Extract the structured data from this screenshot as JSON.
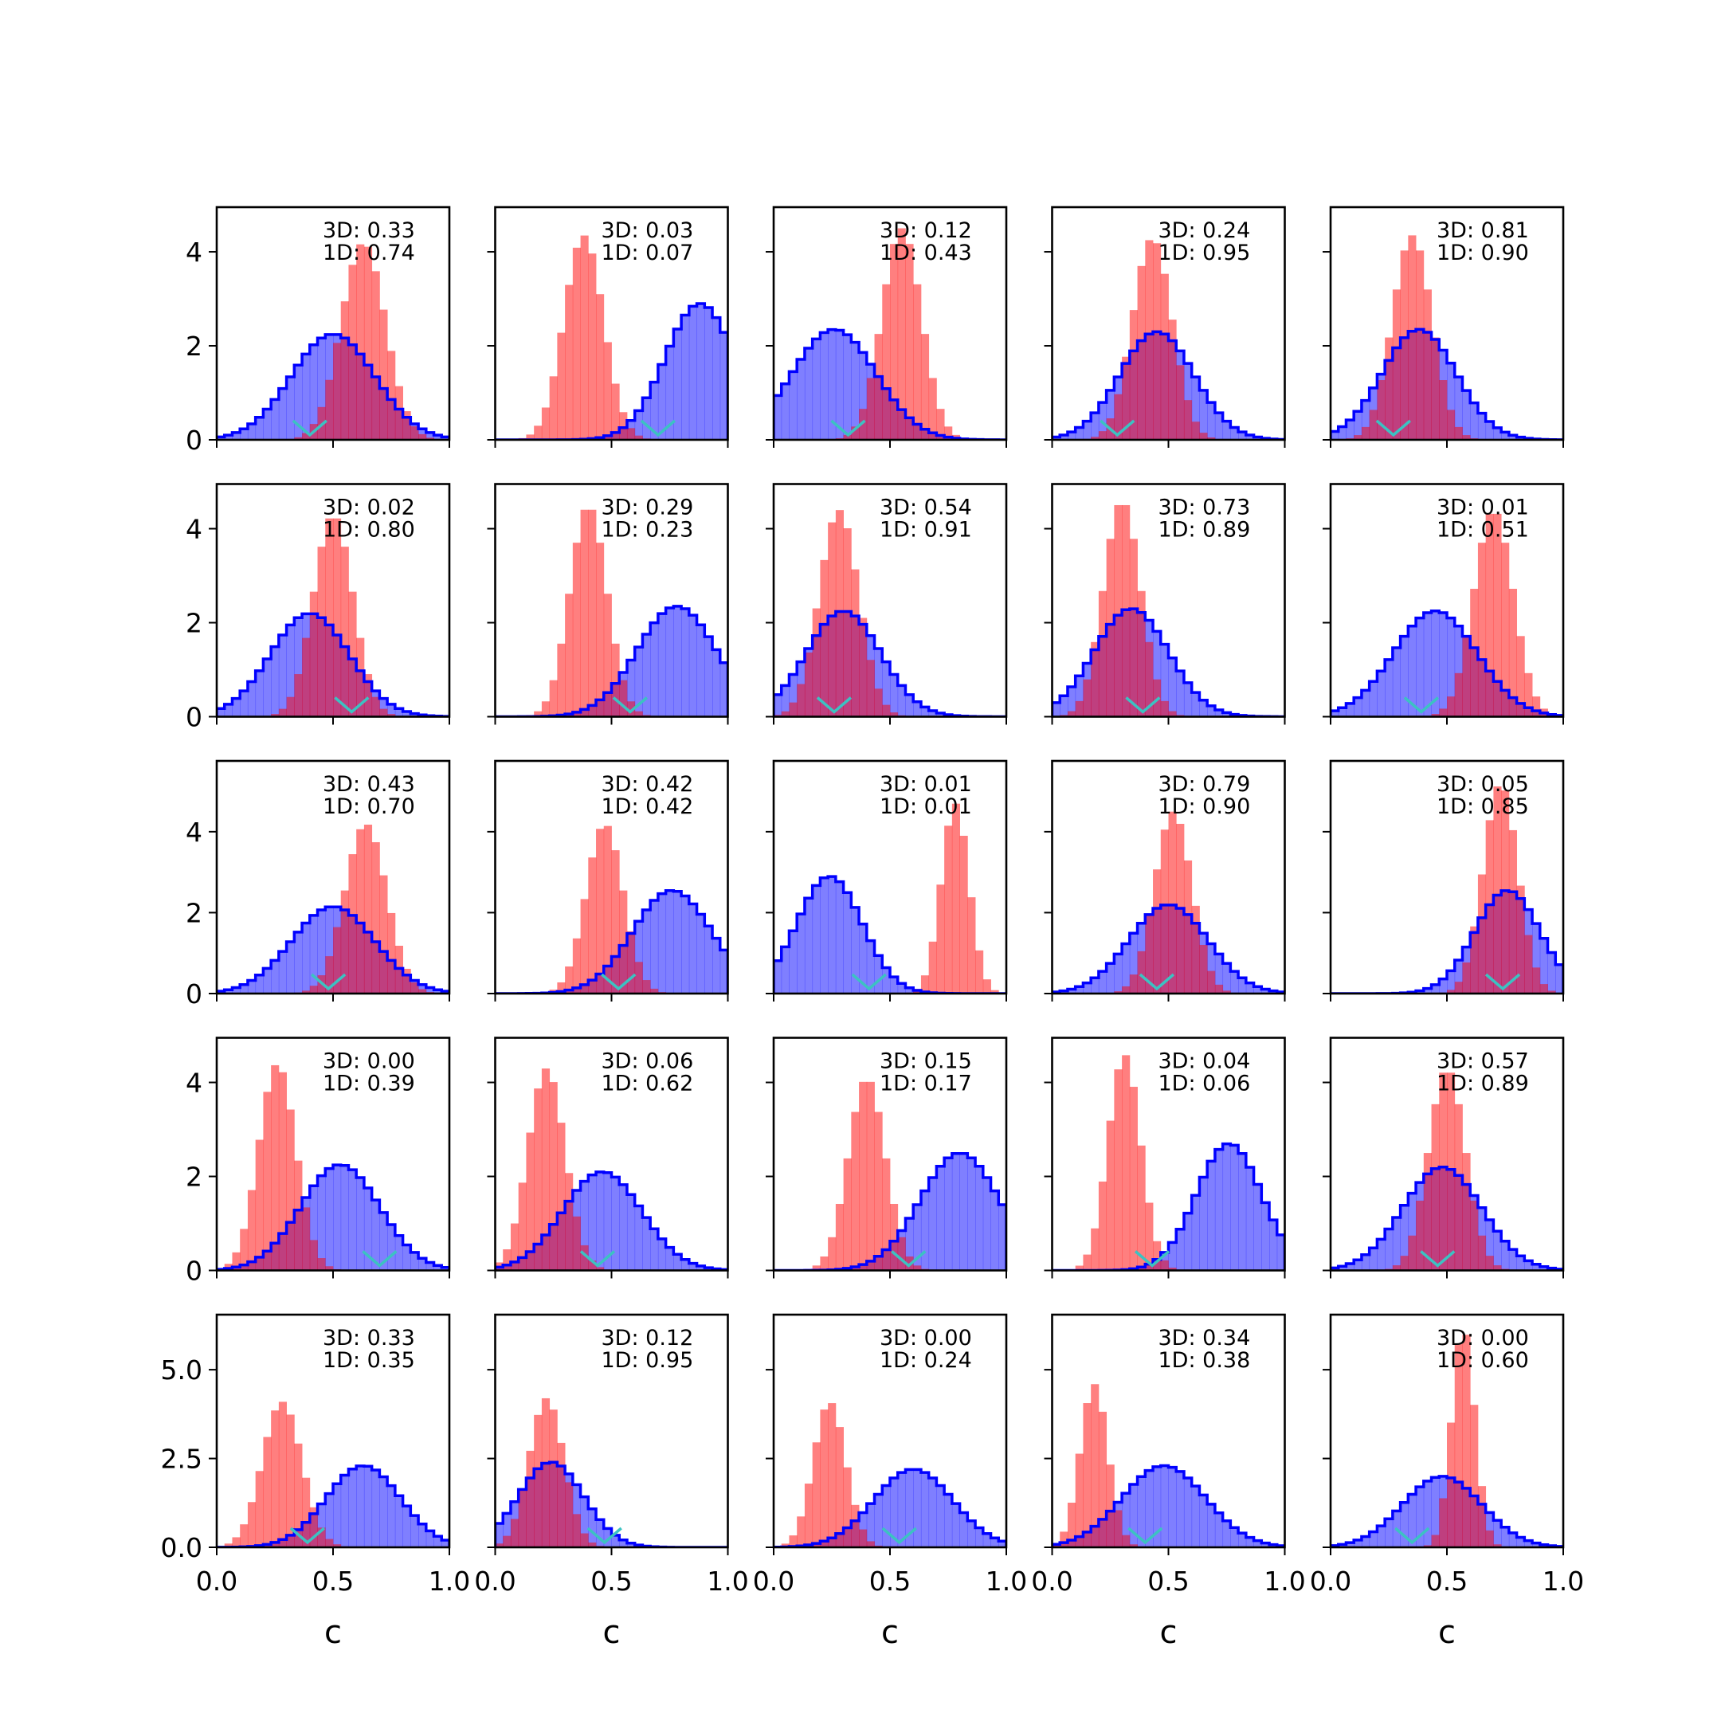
{
  "figure": {
    "rows": 5,
    "cols": 5,
    "colors": {
      "red_hist": "#ff0000",
      "blue_hist": "#0000ff",
      "marker": "#3cc2c2",
      "frame": "#000000"
    }
  },
  "axes": {
    "xlabel": "c",
    "x_range": [
      0,
      1
    ],
    "x_ticks": [
      0.0,
      0.5,
      1.0
    ],
    "x_tick_labels": [
      "0.0",
      "0.5",
      "1.0"
    ],
    "y_rows": [
      {
        "ylim": [
          0,
          4.95
        ],
        "ticks": [
          0,
          2,
          4
        ],
        "labels": [
          "0",
          "2",
          "4"
        ]
      },
      {
        "ylim": [
          0,
          4.95
        ],
        "ticks": [
          0,
          2,
          4
        ],
        "labels": [
          "0",
          "2",
          "4"
        ]
      },
      {
        "ylim": [
          0,
          5.75
        ],
        "ticks": [
          0,
          2,
          4
        ],
        "labels": [
          "0",
          "2",
          "4"
        ]
      },
      {
        "ylim": [
          0,
          4.95
        ],
        "ticks": [
          0,
          2,
          4
        ],
        "labels": [
          "0",
          "2",
          "4"
        ]
      },
      {
        "ylim": [
          0,
          6.55
        ],
        "ticks": [
          0,
          2.5,
          5.0
        ],
        "labels": [
          "0.0",
          "2.5",
          "5.0"
        ]
      }
    ]
  },
  "chart_data": {
    "type": "histogram-grid",
    "bins": 30,
    "bin_range": [
      0,
      1
    ],
    "panels": [
      {
        "id": "r1c1",
        "row": 0,
        "col": 0,
        "ann_3d": "3D: 0.33",
        "ann_1d": "1D: 0.74",
        "red": {
          "mu": 0.63,
          "sd": 0.095,
          "peak": 4.2
        },
        "blue": {
          "mu": 0.5,
          "sd": 0.18,
          "peak": 2.25
        },
        "marker_x": 0.4
      },
      {
        "id": "r1c2",
        "row": 0,
        "col": 1,
        "ann_3d": "3D: 0.03",
        "ann_1d": "1D: 0.07",
        "red": {
          "mu": 0.38,
          "sd": 0.085,
          "peak": 4.35
        },
        "blue": {
          "mu": 0.88,
          "sd": 0.15,
          "peak": 2.9
        },
        "marker_x": 0.7
      },
      {
        "id": "r1c3",
        "row": 0,
        "col": 2,
        "ann_3d": "3D: 0.12",
        "ann_1d": "1D: 0.43",
        "red": {
          "mu": 0.55,
          "sd": 0.085,
          "peak": 4.5
        },
        "blue": {
          "mu": 0.26,
          "sd": 0.18,
          "peak": 2.35
        },
        "marker_x": 0.32
      },
      {
        "id": "r1c4",
        "row": 0,
        "col": 3,
        "ann_3d": "3D: 0.24",
        "ann_1d": "1D: 0.95",
        "red": {
          "mu": 0.43,
          "sd": 0.085,
          "peak": 4.3
        },
        "blue": {
          "mu": 0.45,
          "sd": 0.16,
          "peak": 2.3
        },
        "marker_x": 0.28
      },
      {
        "id": "r1c5",
        "row": 0,
        "col": 4,
        "ann_3d": "3D: 0.81",
        "ann_1d": "1D: 0.90",
        "red": {
          "mu": 0.35,
          "sd": 0.085,
          "peak": 4.35
        },
        "blue": {
          "mu": 0.38,
          "sd": 0.16,
          "peak": 2.35
        },
        "marker_x": 0.27
      },
      {
        "id": "r2c1",
        "row": 1,
        "col": 0,
        "ann_3d": "3D: 0.02",
        "ann_1d": "1D: 0.80",
        "red": {
          "mu": 0.5,
          "sd": 0.085,
          "peak": 4.3
        },
        "blue": {
          "mu": 0.4,
          "sd": 0.17,
          "peak": 2.2
        },
        "marker_x": 0.58
      },
      {
        "id": "r2c2",
        "row": 1,
        "col": 1,
        "ann_3d": "3D: 0.29",
        "ann_1d": "1D: 0.23",
        "red": {
          "mu": 0.4,
          "sd": 0.08,
          "peak": 4.5
        },
        "blue": {
          "mu": 0.78,
          "sd": 0.17,
          "peak": 2.35
        },
        "marker_x": 0.58
      },
      {
        "id": "r2c3",
        "row": 1,
        "col": 2,
        "ann_3d": "3D: 0.54",
        "ann_1d": "1D: 0.91",
        "red": {
          "mu": 0.28,
          "sd": 0.085,
          "peak": 4.4
        },
        "blue": {
          "mu": 0.3,
          "sd": 0.16,
          "peak": 2.25
        },
        "marker_x": 0.26
      },
      {
        "id": "r2c4",
        "row": 1,
        "col": 3,
        "ann_3d": "3D: 0.73",
        "ann_1d": "1D: 0.89",
        "red": {
          "mu": 0.3,
          "sd": 0.08,
          "peak": 4.6
        },
        "blue": {
          "mu": 0.34,
          "sd": 0.16,
          "peak": 2.3
        },
        "marker_x": 0.39
      },
      {
        "id": "r2c5",
        "row": 1,
        "col": 4,
        "ann_3d": "3D: 0.01",
        "ann_1d": "1D: 0.51",
        "red": {
          "mu": 0.7,
          "sd": 0.085,
          "peak": 4.4
        },
        "blue": {
          "mu": 0.45,
          "sd": 0.18,
          "peak": 2.25
        },
        "marker_x": 0.39
      },
      {
        "id": "r3c1",
        "row": 2,
        "col": 0,
        "ann_3d": "3D: 0.43",
        "ann_1d": "1D: 0.70",
        "red": {
          "mu": 0.64,
          "sd": 0.09,
          "peak": 4.2
        },
        "blue": {
          "mu": 0.5,
          "sd": 0.18,
          "peak": 2.15
        },
        "marker_x": 0.48
      },
      {
        "id": "r3c2",
        "row": 2,
        "col": 1,
        "ann_3d": "3D: 0.42",
        "ann_1d": "1D: 0.42",
        "red": {
          "mu": 0.47,
          "sd": 0.08,
          "peak": 4.2
        },
        "blue": {
          "mu": 0.76,
          "sd": 0.17,
          "peak": 2.55
        },
        "marker_x": 0.53
      },
      {
        "id": "r3c3",
        "row": 2,
        "col": 2,
        "ann_3d": "3D: 0.01",
        "ann_1d": "1D: 0.01",
        "red": {
          "mu": 0.78,
          "sd": 0.06,
          "peak": 4.7
        },
        "blue": {
          "mu": 0.24,
          "sd": 0.14,
          "peak": 2.9
        },
        "marker_x": 0.41
      },
      {
        "id": "r3c4",
        "row": 2,
        "col": 3,
        "ann_3d": "3D: 0.79",
        "ann_1d": "1D: 0.90",
        "red": {
          "mu": 0.52,
          "sd": 0.08,
          "peak": 4.5
        },
        "blue": {
          "mu": 0.5,
          "sd": 0.17,
          "peak": 2.2
        },
        "marker_x": 0.45
      },
      {
        "id": "r3c5",
        "row": 2,
        "col": 4,
        "ann_3d": "3D: 0.05",
        "ann_1d": "1D: 0.85",
        "red": {
          "mu": 0.73,
          "sd": 0.075,
          "peak": 5.2
        },
        "blue": {
          "mu": 0.76,
          "sd": 0.14,
          "peak": 2.55
        },
        "marker_x": 0.74
      },
      {
        "id": "r4c1",
        "row": 3,
        "col": 0,
        "ann_3d": "3D: 0.00",
        "ann_1d": "1D: 0.39",
        "red": {
          "mu": 0.26,
          "sd": 0.08,
          "peak": 4.4
        },
        "blue": {
          "mu": 0.53,
          "sd": 0.17,
          "peak": 2.25
        },
        "marker_x": 0.7
      },
      {
        "id": "r4c2",
        "row": 3,
        "col": 1,
        "ann_3d": "3D: 0.06",
        "ann_1d": "1D: 0.62",
        "red": {
          "mu": 0.22,
          "sd": 0.08,
          "peak": 4.3
        },
        "blue": {
          "mu": 0.46,
          "sd": 0.17,
          "peak": 2.1
        },
        "marker_x": 0.44
      },
      {
        "id": "r4c3",
        "row": 3,
        "col": 2,
        "ann_3d": "3D: 0.15",
        "ann_1d": "1D: 0.17",
        "red": {
          "mu": 0.4,
          "sd": 0.08,
          "peak": 4.1
        },
        "blue": {
          "mu": 0.8,
          "sd": 0.17,
          "peak": 2.5
        },
        "marker_x": 0.58
      },
      {
        "id": "r4c4",
        "row": 3,
        "col": 3,
        "ann_3d": "3D: 0.04",
        "ann_1d": "1D: 0.06",
        "red": {
          "mu": 0.31,
          "sd": 0.07,
          "peak": 4.6
        },
        "blue": {
          "mu": 0.76,
          "sd": 0.14,
          "peak": 2.7
        },
        "marker_x": 0.43
      },
      {
        "id": "r4c5",
        "row": 3,
        "col": 4,
        "ann_3d": "3D: 0.57",
        "ann_1d": "1D: 0.89",
        "red": {
          "mu": 0.5,
          "sd": 0.08,
          "peak": 4.3
        },
        "blue": {
          "mu": 0.48,
          "sd": 0.17,
          "peak": 2.2
        },
        "marker_x": 0.46
      },
      {
        "id": "r5c1",
        "row": 4,
        "col": 0,
        "ann_3d": "3D: 0.33",
        "ann_1d": "1D: 0.35",
        "red": {
          "mu": 0.28,
          "sd": 0.085,
          "peak": 4.1
        },
        "blue": {
          "mu": 0.63,
          "sd": 0.16,
          "peak": 2.3
        },
        "marker_x": 0.39
      },
      {
        "id": "r5c2",
        "row": 4,
        "col": 1,
        "ann_3d": "3D: 0.12",
        "ann_1d": "1D: 0.95",
        "red": {
          "mu": 0.22,
          "sd": 0.075,
          "peak": 4.2
        },
        "blue": {
          "mu": 0.24,
          "sd": 0.14,
          "peak": 2.4
        },
        "marker_x": 0.47
      },
      {
        "id": "r5c3",
        "row": 4,
        "col": 2,
        "ann_3d": "3D: 0.00",
        "ann_1d": "1D: 0.24",
        "red": {
          "mu": 0.24,
          "sd": 0.07,
          "peak": 4.1
        },
        "blue": {
          "mu": 0.6,
          "sd": 0.17,
          "peak": 2.2
        },
        "marker_x": 0.54
      },
      {
        "id": "r5c4",
        "row": 4,
        "col": 3,
        "ann_3d": "3D: 0.34",
        "ann_1d": "1D: 0.38",
        "red": {
          "mu": 0.18,
          "sd": 0.06,
          "peak": 4.6
        },
        "blue": {
          "mu": 0.48,
          "sd": 0.18,
          "peak": 2.3
        },
        "marker_x": 0.4
      },
      {
        "id": "r5c5",
        "row": 4,
        "col": 4,
        "ann_3d": "3D: 0.00",
        "ann_1d": "1D: 0.60",
        "red": {
          "mu": 0.57,
          "sd": 0.05,
          "peak": 6.2
        },
        "blue": {
          "mu": 0.48,
          "sd": 0.17,
          "peak": 2.0
        },
        "marker_x": 0.35
      }
    ]
  }
}
